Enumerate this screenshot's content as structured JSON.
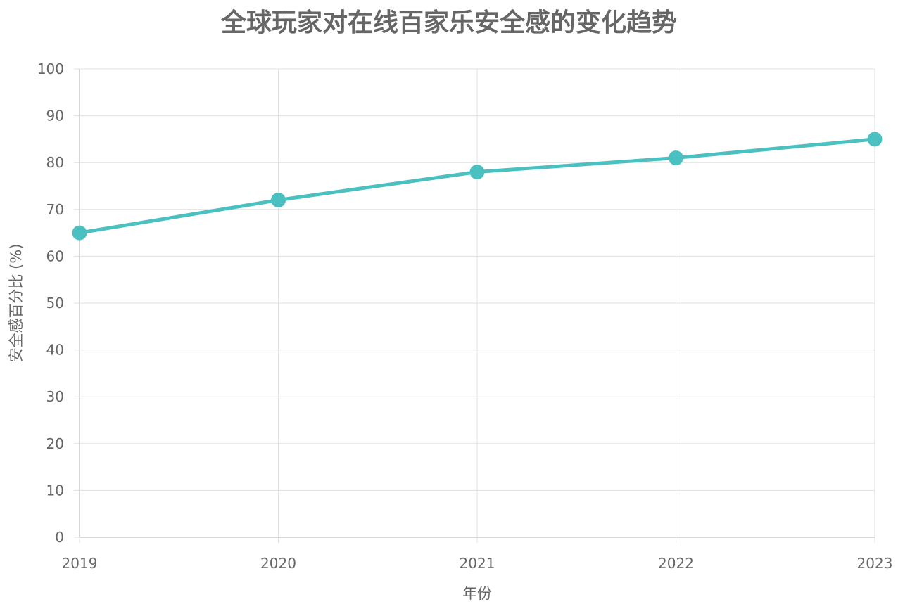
{
  "chart_data": {
    "type": "line",
    "title": "全球玩家对在线百家乐安全感的变化趋势",
    "xlabel": "年份",
    "ylabel": "安全感百分比 (%)",
    "categories": [
      "2019",
      "2020",
      "2021",
      "2022",
      "2023"
    ],
    "series": [
      {
        "values": [
          65,
          72,
          78,
          81,
          85
        ]
      }
    ],
    "ylim": [
      0,
      100
    ],
    "yticks": [
      0,
      10,
      20,
      30,
      40,
      50,
      60,
      70,
      80,
      90,
      100
    ],
    "grid": true,
    "legend": "none",
    "colors": {
      "line": "#4BC0C0",
      "grid": "#e0e0e0",
      "axis": "#cccccc",
      "text": "#666666"
    }
  }
}
